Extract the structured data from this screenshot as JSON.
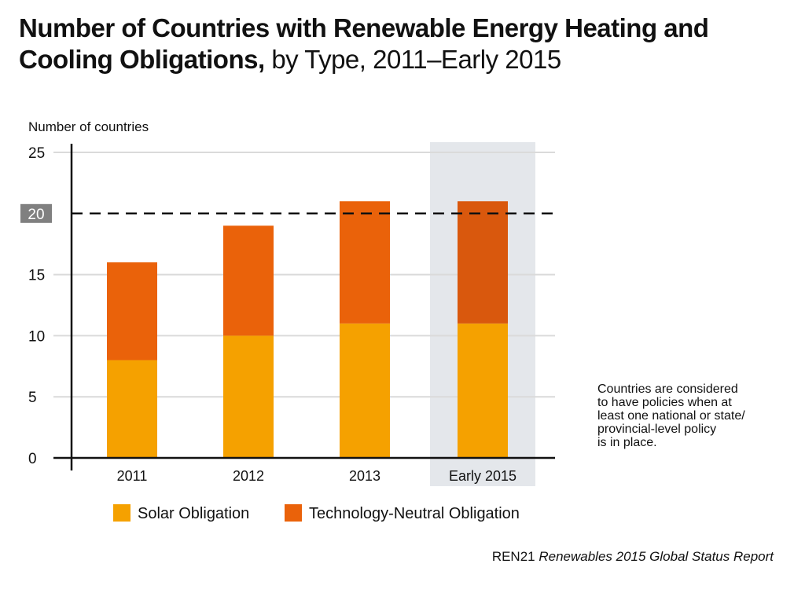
{
  "title": {
    "bold": "Number of Countries with Renewable  Energy Heating and Cooling Obligations,",
    "light": "by Type, 2011–Early 2015"
  },
  "note_lines": [
    "Countries are considered",
    "to have policies when at",
    "least one national or state/",
    "provincial-level policy",
    "is in place."
  ],
  "source": {
    "org": "REN21",
    "report": "Renewables 2015 Global Status Report"
  },
  "colors": {
    "solar": "#f5a100",
    "tech_neutral": "#ea620a",
    "tech_neutral_highlight": "#d9580d",
    "highlight_band": "#e4e7eb",
    "gridline": "#dadada",
    "threshold_label_bg": "#808080"
  },
  "chart_data": {
    "type": "bar",
    "stacked": true,
    "categories": [
      "2011",
      "2012",
      "2013",
      "Early 2015"
    ],
    "series": [
      {
        "name": "Solar Obligation",
        "values": [
          8,
          10,
          11,
          11
        ]
      },
      {
        "name": "Technology-Neutral Obligation",
        "values": [
          8,
          9,
          10,
          10
        ]
      }
    ],
    "ylabel": "Number of countries",
    "ylim": [
      0,
      25
    ],
    "yticks": [
      "0",
      "5",
      "10",
      "15",
      "20",
      "25"
    ],
    "threshold": {
      "value": 20,
      "label": "20",
      "style": "dashed"
    },
    "highlighted_category": "Early 2015",
    "grid": true,
    "legend_position": "bottom"
  }
}
